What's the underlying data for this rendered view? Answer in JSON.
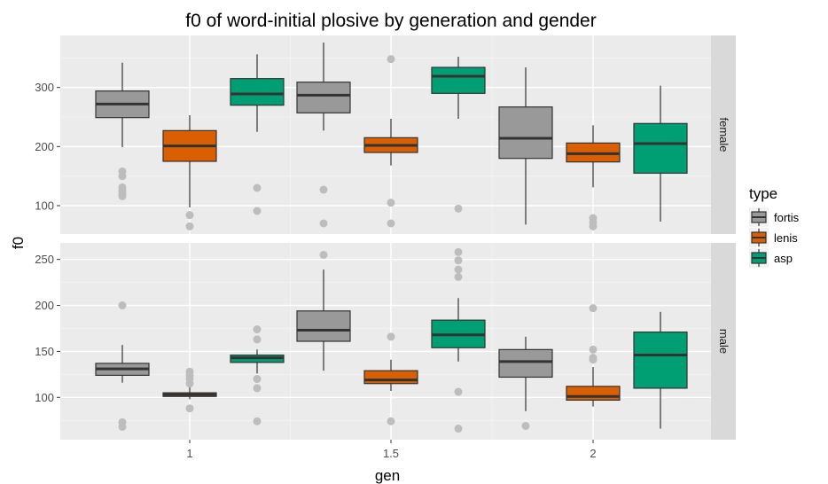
{
  "chart_data": {
    "type": "boxplot",
    "title": "f0 of word-initial plosive by generation and gender",
    "xlabel": "gen",
    "ylabel": "f0",
    "x_ticks": [
      "1",
      "1.5",
      "2"
    ],
    "legend": {
      "title": "type",
      "placement": "right",
      "entries": [
        {
          "name": "fortis",
          "color": "#999999"
        },
        {
          "name": "lenis",
          "color": "#d95f02"
        },
        {
          "name": "asp",
          "color": "#009e73"
        }
      ]
    },
    "grid": true,
    "facets": [
      {
        "label": "female",
        "ylim": [
          52,
          388
        ],
        "y_ticks": [
          100,
          200,
          300
        ],
        "groups": [
          {
            "gen": "1",
            "boxes": [
              {
                "type": "fortis",
                "min": 199,
                "q1": 249,
                "median": 272,
                "q3": 294,
                "max": 342,
                "outliers": [
                  158,
                  150,
                  131,
                  125,
                  120,
                  116
                ]
              },
              {
                "type": "lenis",
                "min": 97,
                "q1": 175,
                "median": 201,
                "q3": 227,
                "max": 253,
                "outliers": [
                  84,
                  65
                ]
              },
              {
                "type": "asp",
                "min": 225,
                "q1": 270,
                "median": 289,
                "q3": 315,
                "max": 356,
                "outliers": [
                  130,
                  91
                ]
              }
            ]
          },
          {
            "gen": "1.5",
            "boxes": [
              {
                "type": "fortis",
                "min": 227,
                "q1": 257,
                "median": 287,
                "q3": 309,
                "max": 376,
                "outliers": [
                  127,
                  70
                ]
              },
              {
                "type": "lenis",
                "min": 168,
                "q1": 190,
                "median": 202,
                "q3": 215,
                "max": 247,
                "outliers": [
                  348,
                  105,
                  70
                ]
              },
              {
                "type": "asp",
                "min": 247,
                "q1": 290,
                "median": 319,
                "q3": 334,
                "max": 352,
                "outliers": [
                  95
                ]
              }
            ]
          },
          {
            "gen": "2",
            "boxes": [
              {
                "type": "fortis",
                "min": 68,
                "q1": 180,
                "median": 214,
                "q3": 267,
                "max": 334,
                "outliers": []
              },
              {
                "type": "lenis",
                "min": 131,
                "q1": 174,
                "median": 188,
                "q3": 206,
                "max": 236,
                "outliers": [
                  79,
                  72,
                  65
                ]
              },
              {
                "type": "asp",
                "min": 73,
                "q1": 155,
                "median": 205,
                "q3": 239,
                "max": 303,
                "outliers": []
              }
            ]
          }
        ]
      },
      {
        "label": "male",
        "ylim": [
          54,
          268
        ],
        "y_ticks": [
          100,
          150,
          200,
          250
        ],
        "groups": [
          {
            "gen": "1",
            "boxes": [
              {
                "type": "fortis",
                "min": 116,
                "q1": 124,
                "median": 131,
                "q3": 137,
                "max": 157,
                "outliers": [
                  200,
                  73,
                  68
                ]
              },
              {
                "type": "lenis",
                "min": 98,
                "q1": 101,
                "median": 103,
                "q3": 105,
                "max": 111,
                "outliers": [
                  128,
                  124,
                  120,
                  115,
                  88
                ]
              },
              {
                "type": "asp",
                "min": 126,
                "q1": 138,
                "median": 143,
                "q3": 146,
                "max": 152,
                "outliers": [
                  174,
                  163,
                  120,
                  110,
                  74
                ]
              }
            ]
          },
          {
            "gen": "1.5",
            "boxes": [
              {
                "type": "fortis",
                "min": 129,
                "q1": 161,
                "median": 173,
                "q3": 194,
                "max": 239,
                "outliers": [
                  255
                ]
              },
              {
                "type": "lenis",
                "min": 107,
                "q1": 115,
                "median": 119,
                "q3": 129,
                "max": 141,
                "outliers": [
                  166,
                  74
                ]
              },
              {
                "type": "asp",
                "min": 139,
                "q1": 154,
                "median": 168,
                "q3": 184,
                "max": 208,
                "outliers": [
                  258,
                  249,
                  239,
                  231,
                  106,
                  66
                ]
              }
            ]
          },
          {
            "gen": "2",
            "boxes": [
              {
                "type": "fortis",
                "min": 85,
                "q1": 122,
                "median": 139,
                "q3": 152,
                "max": 166,
                "outliers": [
                  69
                ]
              },
              {
                "type": "lenis",
                "min": 90,
                "q1": 97,
                "median": 101,
                "q3": 112,
                "max": 133,
                "outliers": [
                  197,
                  152,
                  143,
                  141
                ]
              },
              {
                "type": "asp",
                "min": 66,
                "q1": 110,
                "median": 146,
                "q3": 171,
                "max": 193,
                "outliers": []
              }
            ]
          }
        ]
      }
    ]
  }
}
